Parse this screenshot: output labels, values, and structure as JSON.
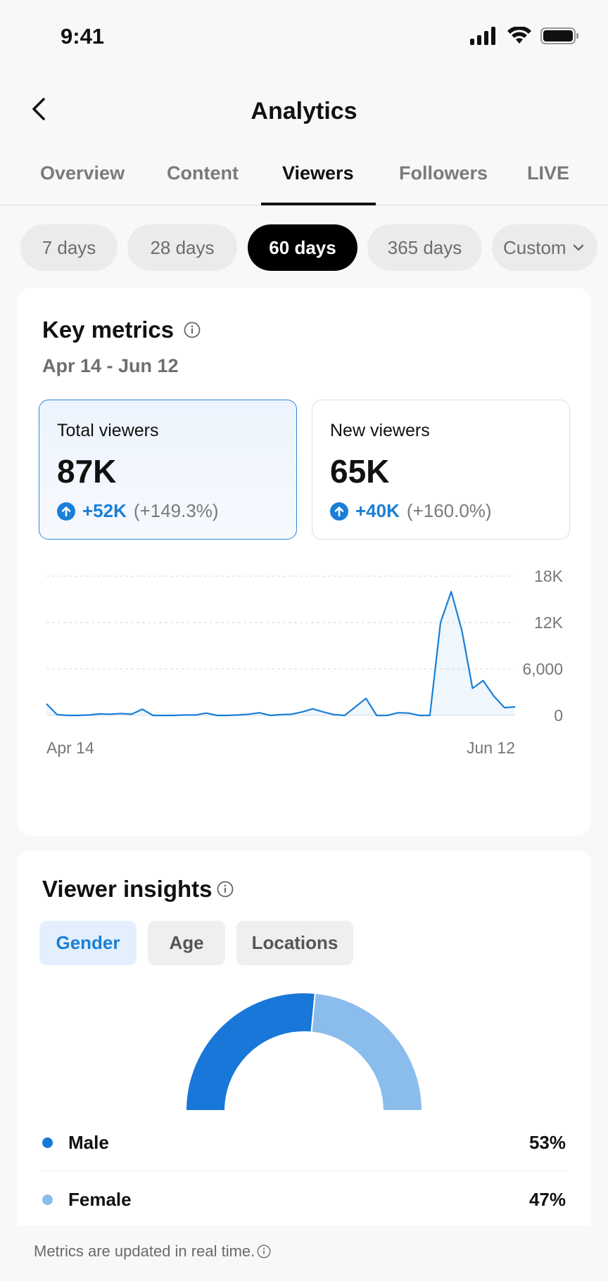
{
  "status_bar": {
    "time": "9:41"
  },
  "header": {
    "title": "Analytics"
  },
  "tabs": [
    {
      "label": "Overview"
    },
    {
      "label": "Content"
    },
    {
      "label": "Viewers",
      "active": true
    },
    {
      "label": "Followers"
    },
    {
      "label": "LIVE"
    }
  ],
  "date_ranges": [
    {
      "label": "7 days"
    },
    {
      "label": "28 days"
    },
    {
      "label": "60 days",
      "active": true
    },
    {
      "label": "365 days"
    },
    {
      "label": "Custom"
    }
  ],
  "key_metrics": {
    "title": "Key metrics",
    "date_range": "Apr 14 - Jun 12",
    "cards": [
      {
        "label": "Total viewers",
        "value": "87K",
        "delta": "+52K",
        "pct": "(+149.3%)",
        "active": true
      },
      {
        "label": "New viewers",
        "value": "65K",
        "delta": "+40K",
        "pct": "(+160.0%)"
      }
    ]
  },
  "chart_data": {
    "type": "area",
    "x_start_label": "Apr 14",
    "x_end_label": "Jun 12",
    "y_ticks": [
      "18K",
      "12K",
      "6,000",
      "0"
    ],
    "ylim": [
      0,
      18000
    ],
    "grid": true,
    "values": [
      1500,
      100,
      0,
      0,
      50,
      200,
      150,
      250,
      150,
      800,
      0,
      0,
      0,
      50,
      50,
      300,
      0,
      0,
      50,
      150,
      350,
      0,
      100,
      150,
      450,
      850,
      450,
      100,
      0,
      1100,
      2200,
      0,
      0,
      350,
      300,
      0,
      0,
      12000,
      16000,
      11000,
      3500,
      4500,
      2500,
      1000,
      1100
    ],
    "color": "#1a7fd6"
  },
  "viewer_insights": {
    "title": "Viewer insights",
    "tabs": [
      {
        "label": "Gender",
        "active": true
      },
      {
        "label": "Age"
      },
      {
        "label": "Locations"
      }
    ],
    "chart_data": {
      "type": "pie",
      "slices": [
        {
          "label": "Male",
          "value": 53,
          "color": "#1877d8"
        },
        {
          "label": "Female",
          "value": 47,
          "color": "#8bbdec"
        }
      ]
    },
    "legend": [
      {
        "label": "Male",
        "value": "53%",
        "color": "#1877d8"
      },
      {
        "label": "Female",
        "value": "47%",
        "color": "#8bbdec"
      }
    ]
  },
  "footer": {
    "text": "Metrics are updated in real time."
  }
}
